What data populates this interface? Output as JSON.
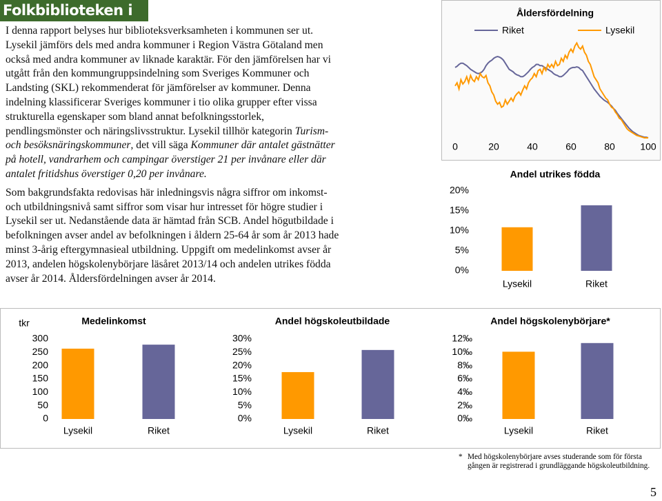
{
  "header": {
    "title": "Folkbiblioteken i Lysekil"
  },
  "body": {
    "paragraphs": [
      {
        "runs": [
          {
            "text": "I denna rapport belyses hur biblioteksverksamheten i kommunen ser ut. Lysekil jämförs dels med andra kommuner i Region Västra Götaland men också med andra kommuner av liknade karaktär. För den jämförelsen har vi utgått från den kommungruppsindelning som Sveriges Kommuner och Landsting (SKL) rekommenderat för jämförelser av kommuner. Denna indelning klassificerar Sveriges kommuner i tio olika grupper efter vissa strukturella egenskaper som bland annat befolkningsstorlek, pendlingsmönster och näringslivsstruktur. Lysekil tillhör kategorin ",
            "style": "normal"
          },
          {
            "text": "Turism- och besöksnäringskommuner",
            "style": "italic"
          },
          {
            "text": ", det vill säga ",
            "style": "normal"
          },
          {
            "text": "Kommuner där antalet gästnätter på hotell, vandrarhem och campingar överstiger 21 per invånare eller där antalet fritidshus överstiger 0,20 per invånare.",
            "style": "italic"
          }
        ]
      },
      {
        "runs": [
          {
            "text": "Som bakgrundsfakta redovisas här inledningsvis några siffror om inkomst- och utbildningsnivå samt siffror som visar hur intresset för högre studier i Lysekil ser ut. Nedanstående data är hämtad från SCB. Andel högutbildade i befolkningen avser andel av befolkningen i åldern 25-64 år som år 2013 hade minst 3-årig eftergymnasieal utbildning. Uppgift om medelinkomst avser år 2013, andelen högskolenybörjare läsåret 2013/14 och andelen utrikes födda avser år 2014. Åldersfördelningen avser år 2014.",
            "style": "normal"
          }
        ]
      }
    ]
  },
  "chart_data": [
    {
      "type": "line",
      "title": "Åldersfördelning",
      "x": [
        0,
        1,
        2,
        3,
        4,
        5,
        6,
        7,
        8,
        9,
        10,
        11,
        12,
        13,
        14,
        15,
        16,
        17,
        18,
        19,
        20,
        21,
        22,
        23,
        24,
        25,
        26,
        27,
        28,
        29,
        30,
        31,
        32,
        33,
        34,
        35,
        36,
        37,
        38,
        39,
        40,
        41,
        42,
        43,
        44,
        45,
        46,
        47,
        48,
        49,
        50,
        51,
        52,
        53,
        54,
        55,
        56,
        57,
        58,
        59,
        60,
        61,
        62,
        63,
        64,
        65,
        66,
        67,
        68,
        69,
        70,
        71,
        72,
        73,
        74,
        75,
        76,
        77,
        78,
        79,
        80,
        81,
        82,
        83,
        84,
        85,
        86,
        87,
        88,
        89,
        90,
        91,
        92,
        93,
        94,
        95,
        96,
        97,
        98,
        99,
        100
      ],
      "series": [
        {
          "name": "Riket",
          "color": "#666699",
          "values": [
            1.15,
            1.17,
            1.2,
            1.22,
            1.22,
            1.2,
            1.18,
            1.15,
            1.12,
            1.1,
            1.08,
            1.06,
            1.05,
            1.06,
            1.08,
            1.12,
            1.18,
            1.22,
            1.25,
            1.27,
            1.3,
            1.32,
            1.33,
            1.32,
            1.3,
            1.27,
            1.22,
            1.17,
            1.12,
            1.1,
            1.08,
            1.05,
            1.03,
            1.02,
            1.0,
            1.0,
            1.02,
            1.05,
            1.08,
            1.12,
            1.15,
            1.17,
            1.2,
            1.2,
            1.18,
            1.18,
            1.16,
            1.14,
            1.12,
            1.1,
            1.08,
            1.05,
            1.03,
            1.02,
            1.0,
            1.0,
            1.02,
            1.05,
            1.08,
            1.12,
            1.14,
            1.15,
            1.15,
            1.16,
            1.15,
            1.12,
            1.1,
            1.05,
            1.0,
            0.95,
            0.9,
            0.85,
            0.8,
            0.76,
            0.72,
            0.68,
            0.65,
            0.62,
            0.6,
            0.58,
            0.55,
            0.52,
            0.48,
            0.45,
            0.4,
            0.36,
            0.32,
            0.28,
            0.24,
            0.2,
            0.16,
            0.13,
            0.1,
            0.08,
            0.06,
            0.04,
            0.03,
            0.02,
            0.01,
            0.01,
            0.0
          ]
        },
        {
          "name": "Lysekil",
          "color": "#ff9900",
          "values": [
            0.85,
            0.9,
            0.8,
            0.95,
            0.88,
            0.92,
            1.0,
            0.9,
            1.02,
            0.95,
            0.92,
            1.0,
            0.95,
            1.05,
            1.0,
            0.98,
            1.02,
            0.9,
            0.85,
            0.75,
            0.7,
            0.6,
            0.55,
            0.58,
            0.5,
            0.52,
            0.62,
            0.55,
            0.6,
            0.65,
            0.6,
            0.68,
            0.72,
            0.75,
            0.7,
            0.78,
            0.85,
            0.8,
            0.9,
            0.95,
            0.98,
            1.05,
            1.0,
            1.1,
            1.12,
            1.05,
            1.15,
            1.1,
            1.2,
            1.15,
            1.2,
            1.15,
            1.25,
            1.18,
            1.2,
            1.3,
            1.25,
            1.35,
            1.3,
            1.4,
            1.45,
            1.4,
            1.5,
            1.55,
            1.48,
            1.45,
            1.5,
            1.4,
            1.35,
            1.25,
            1.2,
            1.1,
            1.0,
            0.95,
            0.9,
            0.8,
            0.75,
            0.7,
            0.65,
            0.62,
            0.55,
            0.5,
            0.48,
            0.42,
            0.38,
            0.32,
            0.3,
            0.25,
            0.2,
            0.15,
            0.12,
            0.1,
            0.08,
            0.06,
            0.04,
            0.03,
            0.02,
            0.01,
            0.0,
            0.0,
            0.0
          ]
        }
      ],
      "xlim": [
        0,
        100
      ],
      "xticks": [
        0,
        20,
        40,
        60,
        80,
        100
      ],
      "ylim": [
        0,
        1.6
      ]
    },
    {
      "type": "bar",
      "title": "Andel utrikes födda",
      "categories": [
        "Lysekil",
        "Riket"
      ],
      "values": [
        10.9,
        16.4
      ],
      "colors": [
        "#ff9900",
        "#666699"
      ],
      "ylim": [
        0,
        20
      ],
      "yticks": [
        {
          "value": 0,
          "label": "0%"
        },
        {
          "value": 5,
          "label": "5%"
        },
        {
          "value": 10,
          "label": "10%"
        },
        {
          "value": 15,
          "label": "15%"
        },
        {
          "value": 20,
          "label": "20%"
        }
      ]
    },
    {
      "type": "bar",
      "title": "Medelinkomst",
      "unit": "tkr",
      "categories": [
        "Lysekil",
        "Riket"
      ],
      "values": [
        264,
        279
      ],
      "colors": [
        "#ff9900",
        "#666699"
      ],
      "ylim": [
        0,
        300
      ],
      "yticks": [
        0,
        50,
        100,
        150,
        200,
        250,
        300
      ]
    },
    {
      "type": "bar",
      "title": "Andel högskoleutbildade",
      "categories": [
        "Lysekil",
        "Riket"
      ],
      "values": [
        17.6,
        25.9
      ],
      "colors": [
        "#ff9900",
        "#666699"
      ],
      "ylim": [
        0,
        30
      ],
      "yticks": [
        {
          "value": 0,
          "label": "0%"
        },
        {
          "value": 5,
          "label": "5%"
        },
        {
          "value": 10,
          "label": "10%"
        },
        {
          "value": 15,
          "label": "15%"
        },
        {
          "value": 20,
          "label": "20%"
        },
        {
          "value": 25,
          "label": "25%"
        },
        {
          "value": 30,
          "label": "30%"
        }
      ]
    },
    {
      "type": "bar",
      "title": "Andel högskolenybörjare*",
      "categories": [
        "Lysekil",
        "Riket"
      ],
      "values": [
        10.1,
        11.4
      ],
      "colors": [
        "#ff9900",
        "#666699"
      ],
      "ylim": [
        0,
        12
      ],
      "yticks": [
        {
          "value": 0,
          "label": "0‰"
        },
        {
          "value": 2,
          "label": "2‰"
        },
        {
          "value": 4,
          "label": "4‰"
        },
        {
          "value": 6,
          "label": "6‰"
        },
        {
          "value": 8,
          "label": "8‰"
        },
        {
          "value": 10,
          "label": "10‰"
        },
        {
          "value": 12,
          "label": "12‰"
        }
      ]
    }
  ],
  "footnote": {
    "mark": "*",
    "text": "Med högskolenybörjare avses studerande som för första gången är registrerad i grundläggande högskoleutbildning."
  },
  "page_number": "5"
}
